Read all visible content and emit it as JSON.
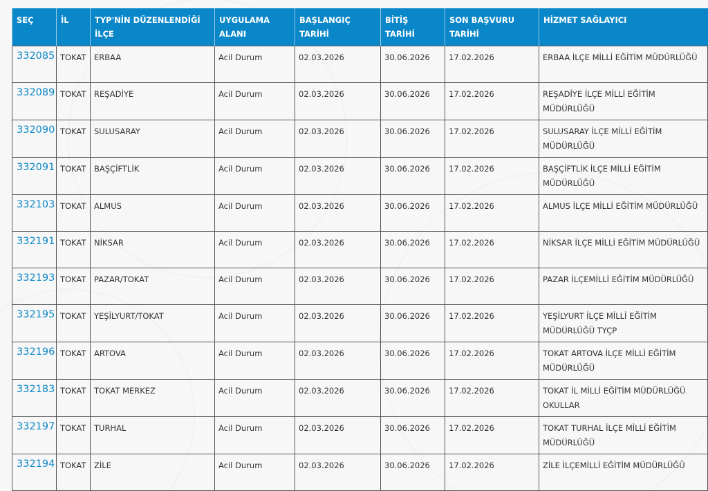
{
  "headers": [
    "SEÇ",
    "İL",
    "TYP'NİN DÜZENLENDİĞİ İLÇE",
    "UYGULAMA ALANI",
    "BAŞLANGIÇ TARİHİ",
    "BİTİŞ TARİHİ",
    "SON BAŞVURU TARİHİ",
    "HİZMET SAĞLAYICI"
  ],
  "rows": [
    [
      "332085",
      "TOKAT",
      "ERBAA",
      "Acil Durum",
      "02.03.2026",
      "30.06.2026",
      "17.02.2026",
      "ERBAA İLÇE MİLLİ EĞİTİM MÜDÜRLÜĞÜ"
    ],
    [
      "332089",
      "TOKAT",
      "REŞADİYE",
      "Acil Durum",
      "02.03.2026",
      "30.06.2026",
      "17.02.2026",
      "REŞADİYE İLÇE MİLLİ EĞİTİM MÜDÜRLÜĞÜ"
    ],
    [
      "332090",
      "TOKAT",
      "SULUSARAY",
      "Acil Durum",
      "02.03.2026",
      "30.06.2026",
      "17.02.2026",
      "SULUSARAY İLÇE MİLLİ EĞİTİM MÜDÜRLÜĞÜ"
    ],
    [
      "332091",
      "TOKAT",
      "BAŞÇİFTLİK",
      "Acil Durum",
      "02.03.2026",
      "30.06.2026",
      "17.02.2026",
      "BAŞÇİFTLİK İLÇE MİLLİ EĞİTİM MÜDÜRLÜĞÜ"
    ],
    [
      "332103",
      "TOKAT",
      "ALMUS",
      "Acil Durum",
      "02.03.2026",
      "30.06.2026",
      "17.02.2026",
      "ALMUS İLÇE MİLLİ EĞİTİM MÜDÜRLÜĞÜ"
    ],
    [
      "332191",
      "TOKAT",
      "NİKSAR",
      "Acil Durum",
      "02.03.2026",
      "30.06.2026",
      "17.02.2026",
      "NİKSAR İLÇE MİLLİ EĞİTİM MÜDÜRLÜĞÜ"
    ],
    [
      "332193",
      "TOKAT",
      "PAZAR/TOKAT",
      "Acil Durum",
      "02.03.2026",
      "30.06.2026",
      "17.02.2026",
      "PAZAR İLÇEMİLLİ EĞİTİM MÜDÜRLÜĞÜ"
    ],
    [
      "332195",
      "TOKAT",
      "YEŞİLYURT/TOKAT",
      "Acil Durum",
      "02.03.2026",
      "30.06.2026",
      "17.02.2026",
      "YEŞİLYURT İLÇE MİLLİ EĞİTİM MÜDÜRLÜĞÜ TYÇP"
    ],
    [
      "332196",
      "TOKAT",
      "ARTOVA",
      "Acil Durum",
      "02.03.2026",
      "30.06.2026",
      "17.02.2026",
      "TOKAT ARTOVA İLÇE MİLLİ EĞİTİM MÜDÜRLÜĞÜ"
    ],
    [
      "332183",
      "TOKAT",
      "TOKAT MERKEZ",
      "Acil Durum",
      "02.03.2026",
      "30.06.2026",
      "17.02.2026",
      "TOKAT İL MİLLİ EĞİTİM MÜDÜRLÜĞÜ OKULLAR"
    ],
    [
      "332197",
      "TOKAT",
      "TURHAL",
      "Acil Durum",
      "02.03.2026",
      "30.06.2026",
      "17.02.2026",
      "TOKAT TURHAL İLÇE MİLLİ EĞİTİM MÜDÜRLÜĞÜ"
    ],
    [
      "332194",
      "TOKAT",
      "ZİLE",
      "Acil Durum",
      "02.03.2026",
      "30.06.2026",
      "17.02.2026",
      "ZİLE İLÇEMİLLİ EĞİTİM MÜDÜRLÜĞÜ"
    ]
  ]
}
